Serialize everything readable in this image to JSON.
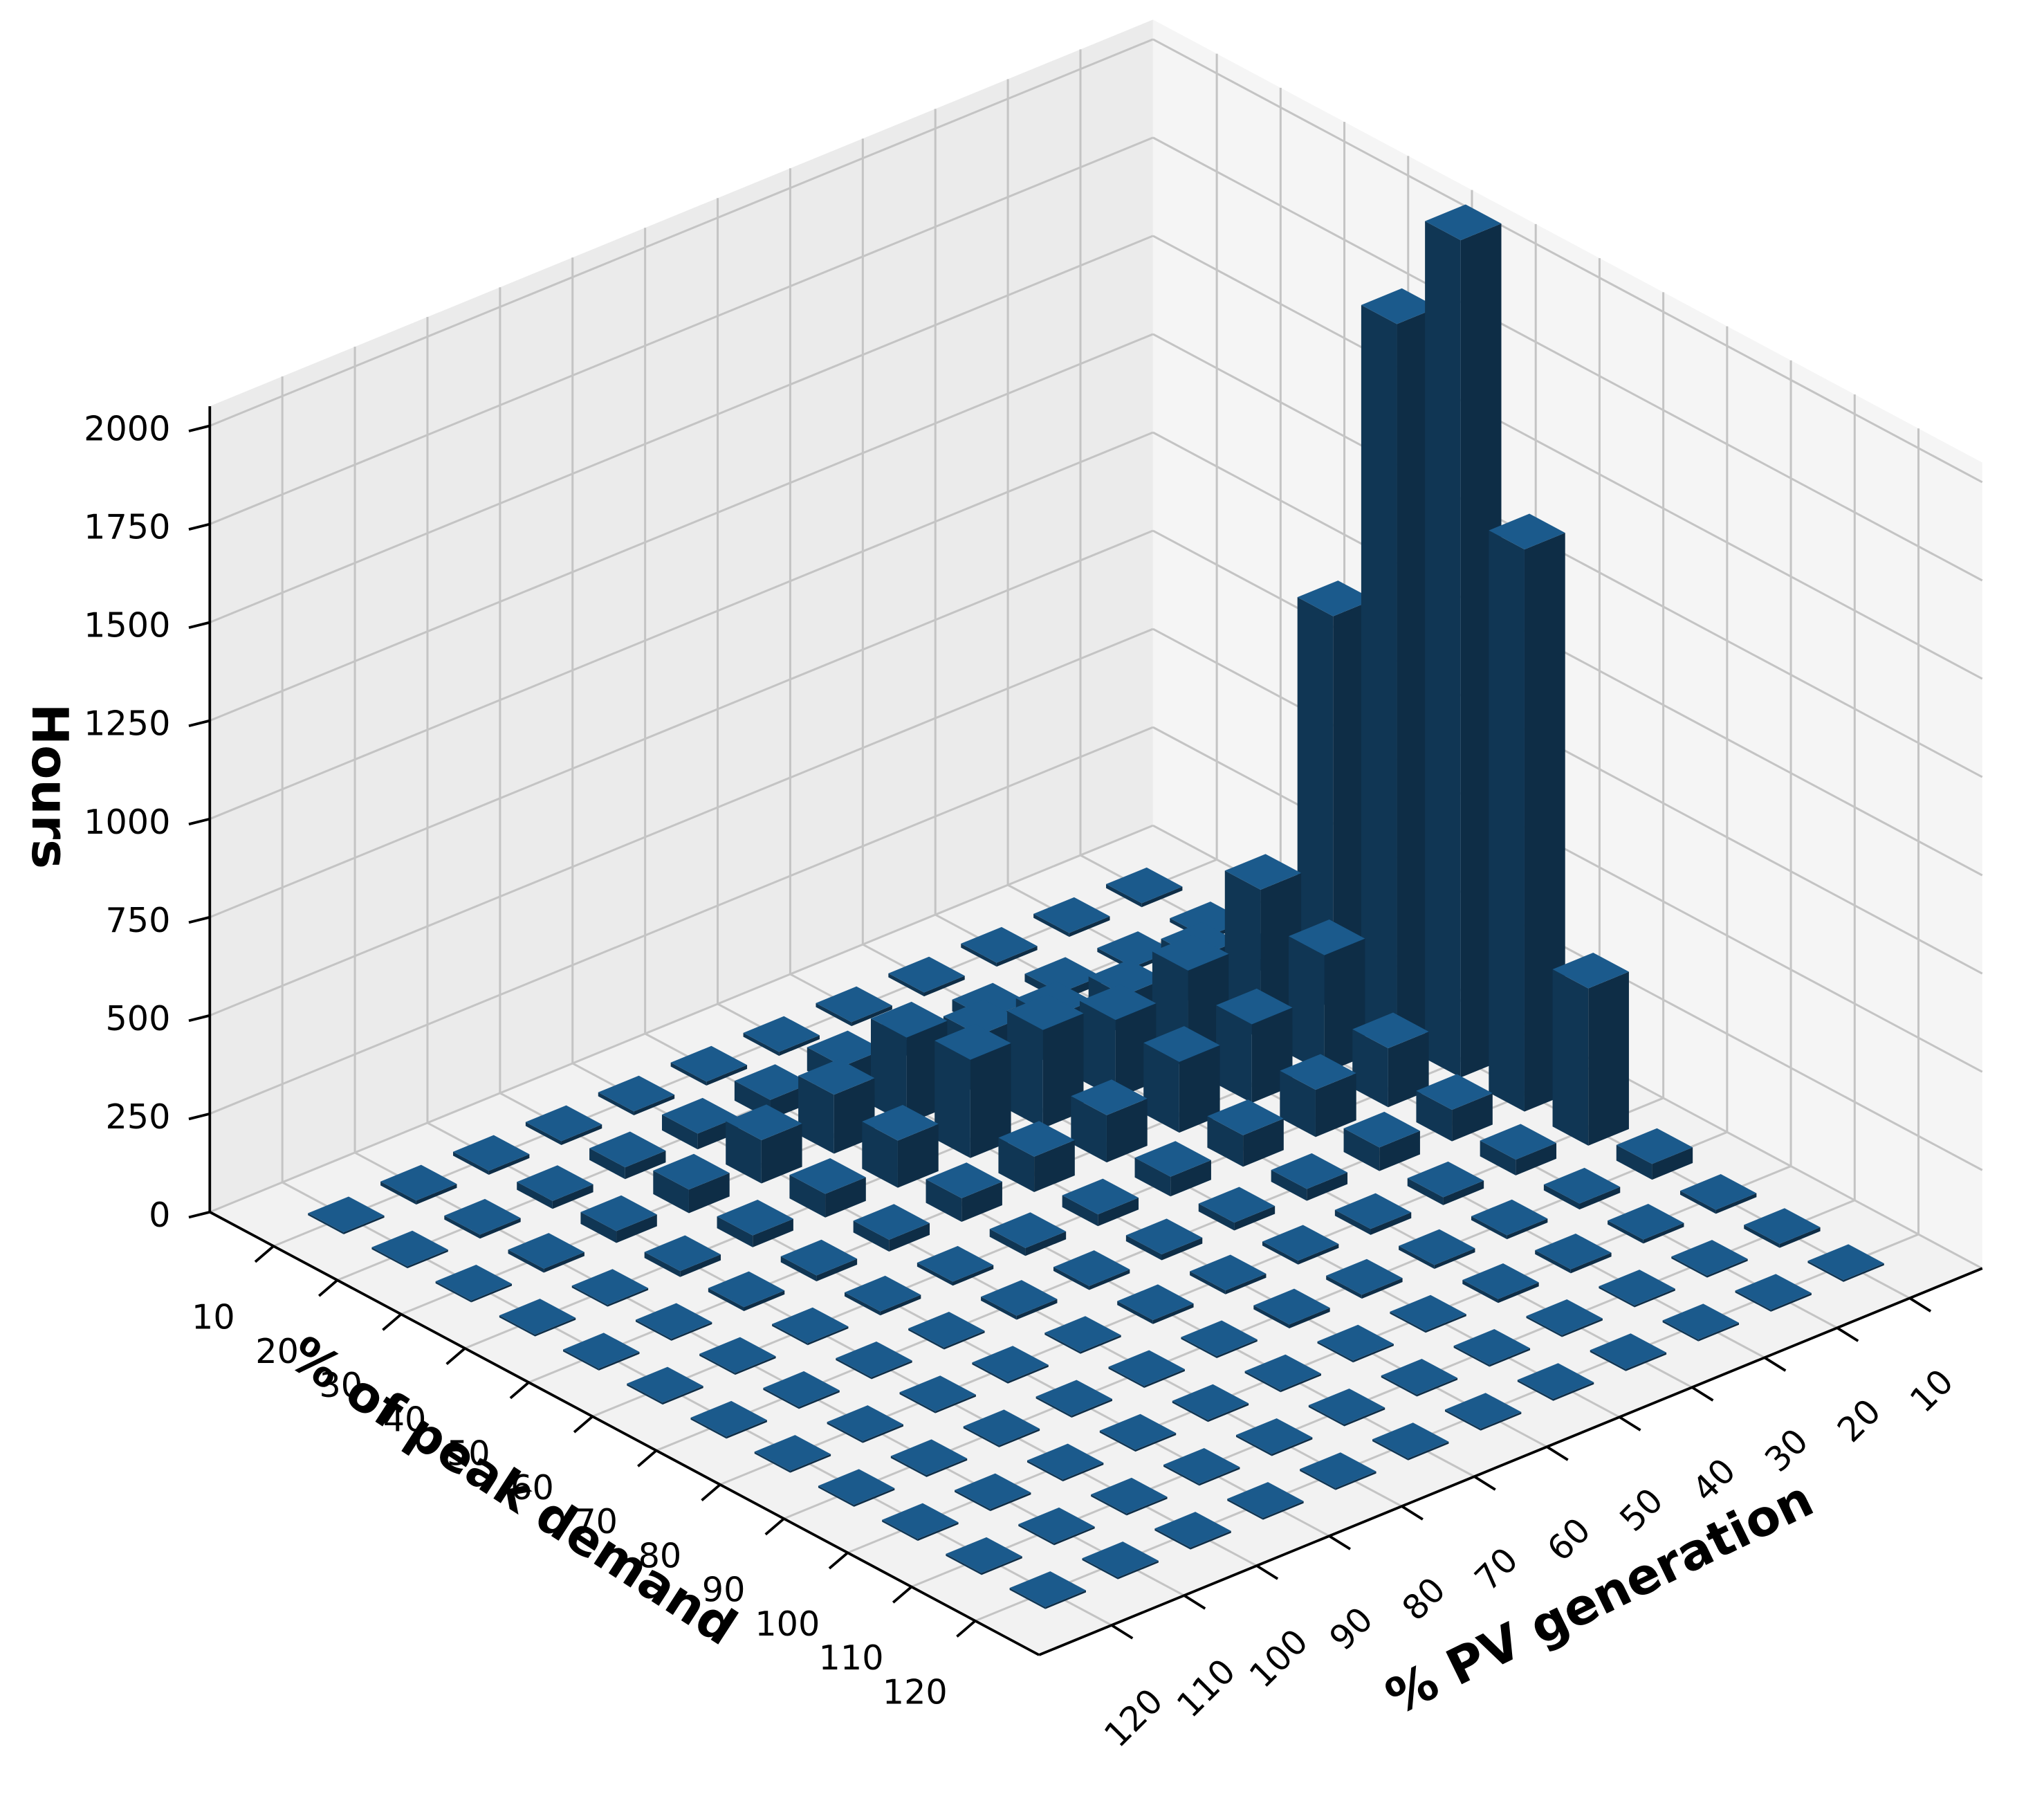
{
  "chart_data": {
    "type": "bar3d",
    "xlabel": "% of peak demand",
    "ylabel": "% PV generation",
    "zlabel": "Hours",
    "x": [
      10,
      20,
      30,
      40,
      50,
      60,
      70,
      80,
      90,
      100,
      110,
      120
    ],
    "y": [
      10,
      20,
      30,
      40,
      50,
      60,
      70,
      80,
      90,
      100,
      110,
      120
    ],
    "values": [
      [
        10,
        10,
        10,
        10,
        10,
        10,
        10,
        10,
        10,
        10,
        10,
        5
      ],
      [
        10,
        10,
        20,
        30,
        40,
        60,
        50,
        40,
        30,
        20,
        10,
        5
      ],
      [
        30,
        120,
        100,
        120,
        150,
        220,
        150,
        110,
        60,
        30,
        10,
        5
      ],
      [
        1000,
        380,
        250,
        200,
        250,
        250,
        120,
        60,
        30,
        15,
        5,
        5
      ],
      [
        1830,
        300,
        200,
        180,
        120,
        90,
        60,
        30,
        15,
        10,
        5,
        5
      ],
      [
        2130,
        150,
        120,
        80,
        50,
        30,
        20,
        10,
        10,
        5,
        5,
        5
      ],
      [
        1430,
        80,
        60,
        30,
        20,
        15,
        10,
        10,
        5,
        5,
        5,
        5
      ],
      [
        400,
        40,
        20,
        15,
        10,
        10,
        10,
        5,
        5,
        5,
        5,
        5
      ],
      [
        40,
        15,
        10,
        10,
        10,
        10,
        5,
        5,
        5,
        5,
        5,
        5
      ],
      [
        10,
        10,
        10,
        10,
        5,
        5,
        5,
        5,
        5,
        5,
        5,
        5
      ],
      [
        10,
        5,
        5,
        5,
        5,
        5,
        5,
        5,
        5,
        5,
        5,
        5
      ],
      [
        5,
        5,
        5,
        5,
        5,
        5,
        5,
        5,
        5,
        5,
        5,
        5
      ]
    ],
    "color": "#1b5a8c",
    "xlim": [
      0,
      130
    ],
    "ylim": [
      0,
      130
    ],
    "zlim": [
      0,
      2050
    ],
    "xticks": [
      10,
      20,
      30,
      40,
      50,
      60,
      70,
      80,
      90,
      100,
      110,
      120
    ],
    "yticks": [
      10,
      20,
      30,
      40,
      50,
      60,
      70,
      80,
      90,
      100,
      110,
      120
    ],
    "zticks": [
      0,
      250,
      500,
      750,
      1000,
      1250,
      1500,
      1750,
      2000
    ],
    "grid": true
  }
}
